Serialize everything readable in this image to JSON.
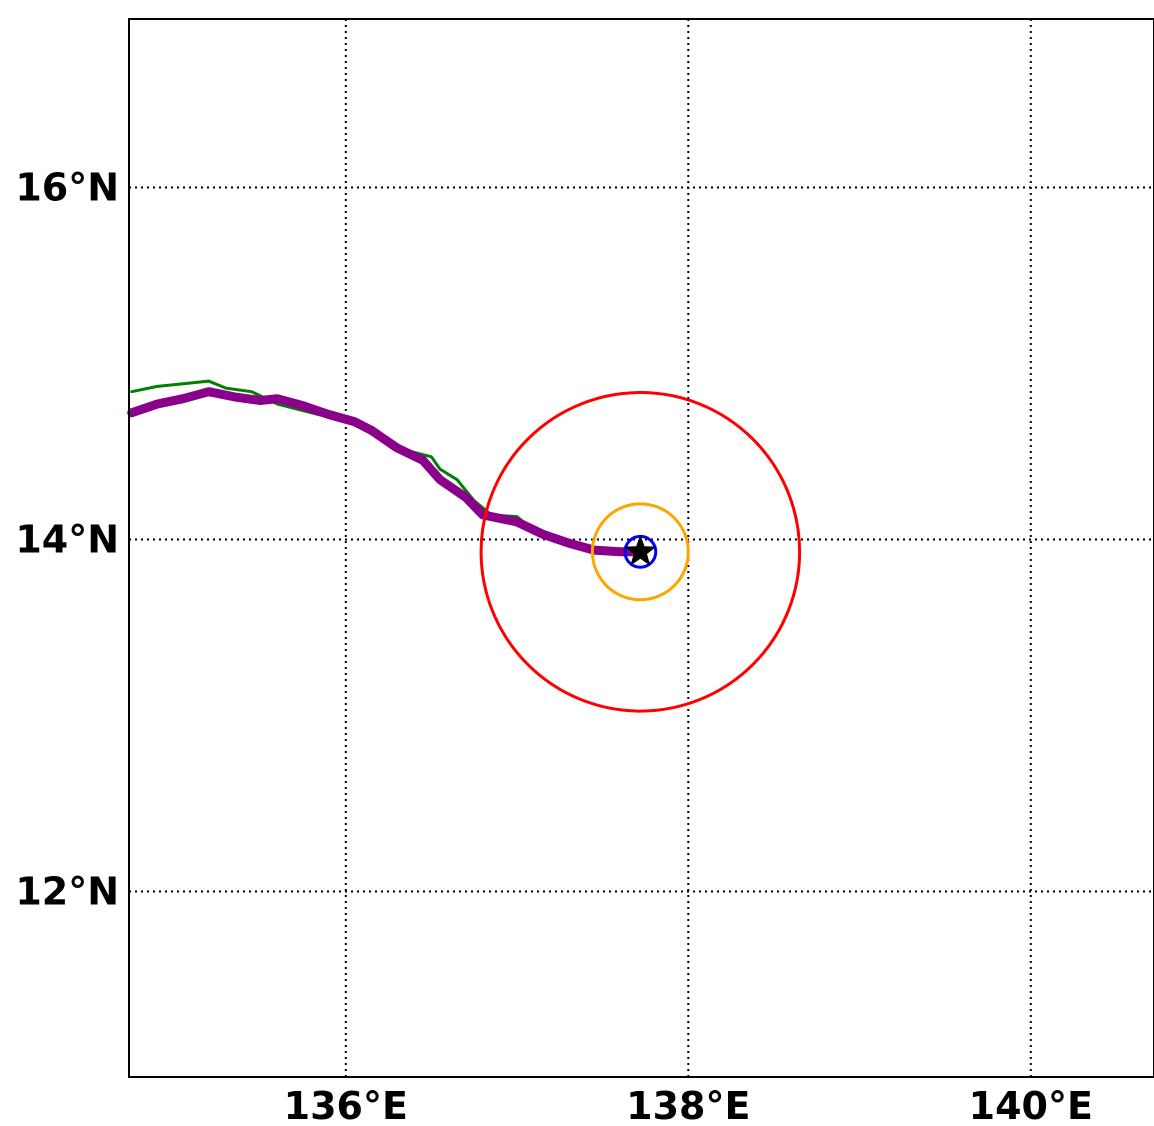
{
  "map": {
    "lon_range": [
      134.75,
      140.75
    ],
    "lat_range": [
      10.9,
      17.0
    ],
    "lon_ticks": [
      {
        "value": 136,
        "label": "136°E"
      },
      {
        "value": 138,
        "label": "138°E"
      },
      {
        "value": 140,
        "label": "140°E"
      }
    ],
    "lat_ticks": [
      {
        "value": 12,
        "label": "12°N"
      },
      {
        "value": 14,
        "label": "14°N"
      },
      {
        "value": 16,
        "label": "16°N"
      }
    ],
    "grid": "dotted",
    "center": {
      "lon": 137.72,
      "lat": 13.93,
      "marker": "star-icon",
      "color": "#000000"
    },
    "circles": [
      {
        "name": "outer-radius-circle",
        "radius_deg": 0.93,
        "color": "#ff0000"
      },
      {
        "name": "middle-radius-circle",
        "radius_deg": 0.28,
        "color": "#ffa500"
      },
      {
        "name": "inner-radius-circle",
        "radius_deg": 0.09,
        "color": "#0000ff"
      }
    ],
    "tracks": [
      {
        "name": "green-track",
        "color": "#008000",
        "width": "thin",
        "points": [
          [
            134.75,
            14.84
          ],
          [
            134.9,
            14.87
          ],
          [
            135.1,
            14.89
          ],
          [
            135.2,
            14.9
          ],
          [
            135.3,
            14.86
          ],
          [
            135.45,
            14.84
          ],
          [
            135.6,
            14.77
          ],
          [
            135.8,
            14.72
          ],
          [
            136.0,
            14.67
          ],
          [
            136.15,
            14.62
          ],
          [
            136.3,
            14.52
          ],
          [
            136.5,
            14.47
          ],
          [
            136.55,
            14.4
          ],
          [
            136.65,
            14.34
          ],
          [
            136.75,
            14.22
          ],
          [
            136.85,
            14.14
          ],
          [
            137.0,
            14.13
          ],
          [
            137.1,
            14.05
          ],
          [
            137.2,
            14.0
          ]
        ]
      },
      {
        "name": "purple-track",
        "color": "#8b008b",
        "width": "thick",
        "points": [
          [
            134.75,
            14.72
          ],
          [
            134.9,
            14.77
          ],
          [
            135.05,
            14.8
          ],
          [
            135.2,
            14.84
          ],
          [
            135.35,
            14.81
          ],
          [
            135.5,
            14.79
          ],
          [
            135.6,
            14.8
          ],
          [
            135.75,
            14.76
          ],
          [
            135.9,
            14.71
          ],
          [
            136.05,
            14.67
          ],
          [
            136.15,
            14.62
          ],
          [
            136.3,
            14.52
          ],
          [
            136.45,
            14.45
          ],
          [
            136.55,
            14.34
          ],
          [
            136.7,
            14.24
          ],
          [
            136.8,
            14.14
          ],
          [
            137.0,
            14.1
          ],
          [
            137.15,
            14.03
          ],
          [
            137.3,
            13.98
          ],
          [
            137.45,
            13.94
          ],
          [
            137.6,
            13.93
          ],
          [
            137.72,
            13.93
          ]
        ]
      }
    ]
  }
}
